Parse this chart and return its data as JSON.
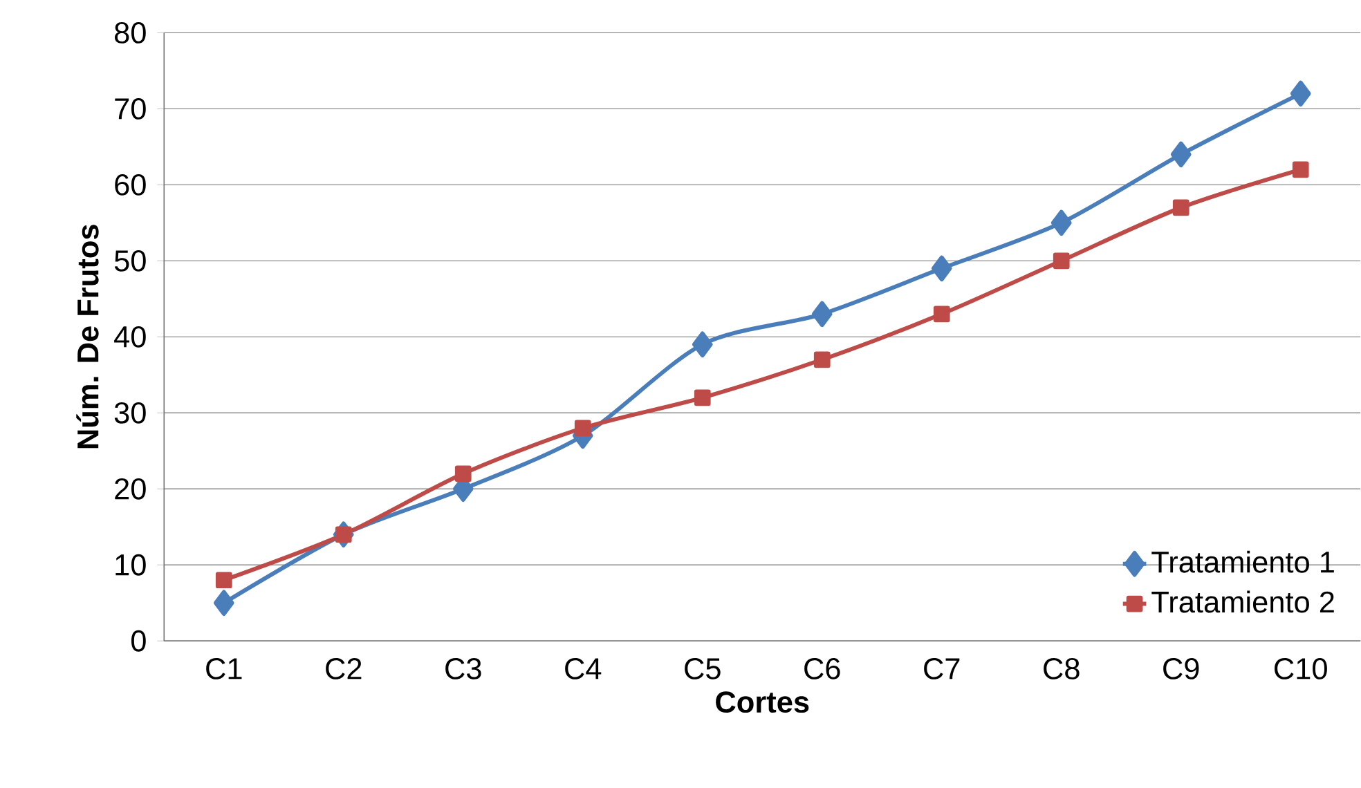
{
  "chart_data": {
    "type": "line",
    "xlabel": "Cortes",
    "ylabel": "Núm. De Frutos",
    "categories": [
      "C1",
      "C2",
      "C3",
      "C4",
      "C5",
      "C6",
      "C7",
      "C8",
      "C9",
      "C10"
    ],
    "series": [
      {
        "name": "Tratamiento 1",
        "color": "#4a7ebb",
        "marker": "diamond",
        "values": [
          5,
          14,
          20,
          27,
          39,
          43,
          49,
          55,
          64,
          72
        ]
      },
      {
        "name": "Tratamiento 2",
        "color": "#be4b48",
        "marker": "square",
        "values": [
          8,
          14,
          22,
          28,
          32,
          37,
          43,
          50,
          57,
          62
        ]
      }
    ],
    "ylim": [
      0,
      80
    ],
    "yticks": [
      0,
      10,
      20,
      30,
      40,
      50,
      60,
      70,
      80
    ],
    "grid": "y",
    "legend": "bottom right",
    "line_style": "solid"
  }
}
